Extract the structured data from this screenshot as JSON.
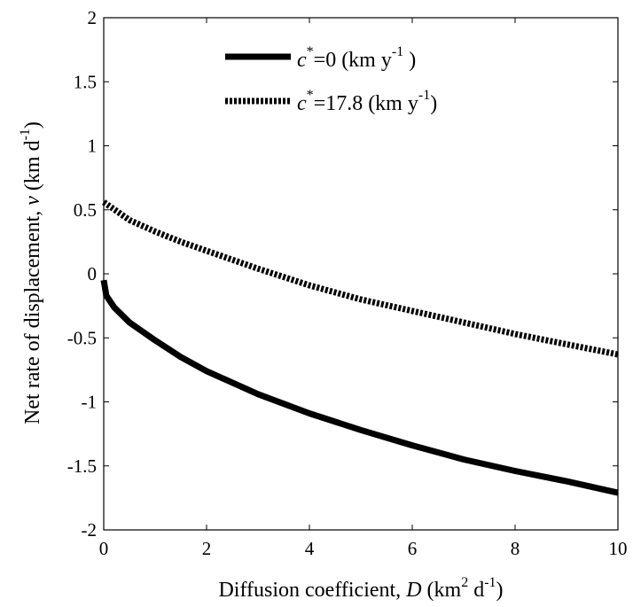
{
  "chart_data": {
    "type": "line",
    "xlabel_parts": {
      "pre": "Diffusion coefficient,  ",
      "var": "D",
      "unit_a": " (km",
      "unit_sup1": "2",
      "unit_b": " d",
      "unit_sup2": "-1",
      "unit_c": ")"
    },
    "ylabel_parts": {
      "pre": "Net rate of displacement,  ",
      "var": "v",
      "unit_a": " (km d",
      "unit_sup": "-1",
      "unit_c": ")"
    },
    "xlim": [
      0,
      10
    ],
    "ylim": [
      -2,
      2
    ],
    "xticks": [
      0,
      2,
      4,
      6,
      8,
      10
    ],
    "yticks": [
      -2,
      -1.5,
      -1,
      -0.5,
      0,
      0.5,
      1,
      1.5,
      2
    ],
    "x_tick_labels": [
      "0",
      "2",
      "4",
      "6",
      "8",
      "10"
    ],
    "y_tick_labels": [
      "-2",
      "-1.5",
      "-1",
      "-0.5",
      "0",
      "0.5",
      "1",
      "1.5",
      "2"
    ],
    "grid": false,
    "legend_position": "top-right",
    "series": [
      {
        "name_parts": {
          "var": "c",
          "sup": "*",
          "rest": "=0 (km  y",
          "sup2": "-1",
          "end": " )"
        },
        "style": "solid",
        "color": "#000000",
        "x": [
          0,
          0.05,
          0.2,
          0.5,
          1,
          1.5,
          2,
          3,
          4,
          5,
          6,
          7,
          8,
          9,
          10
        ],
        "y": [
          -0.05,
          -0.17,
          -0.26,
          -0.38,
          -0.52,
          -0.65,
          -0.76,
          -0.94,
          -1.09,
          -1.22,
          -1.34,
          -1.45,
          -1.54,
          -1.62,
          -1.71
        ]
      },
      {
        "name_parts": {
          "var": "c",
          "sup": "*",
          "rest": "=17.8 (km  y",
          "sup2": "-1",
          "end": ")"
        },
        "style": "dashed",
        "color": "#000000",
        "x": [
          0,
          0.5,
          1,
          1.5,
          2,
          3,
          4,
          5,
          6,
          7,
          8,
          9,
          10
        ],
        "y": [
          0.56,
          0.42,
          0.33,
          0.25,
          0.18,
          0.04,
          -0.09,
          -0.2,
          -0.29,
          -0.38,
          -0.47,
          -0.55,
          -0.63
        ]
      }
    ]
  }
}
